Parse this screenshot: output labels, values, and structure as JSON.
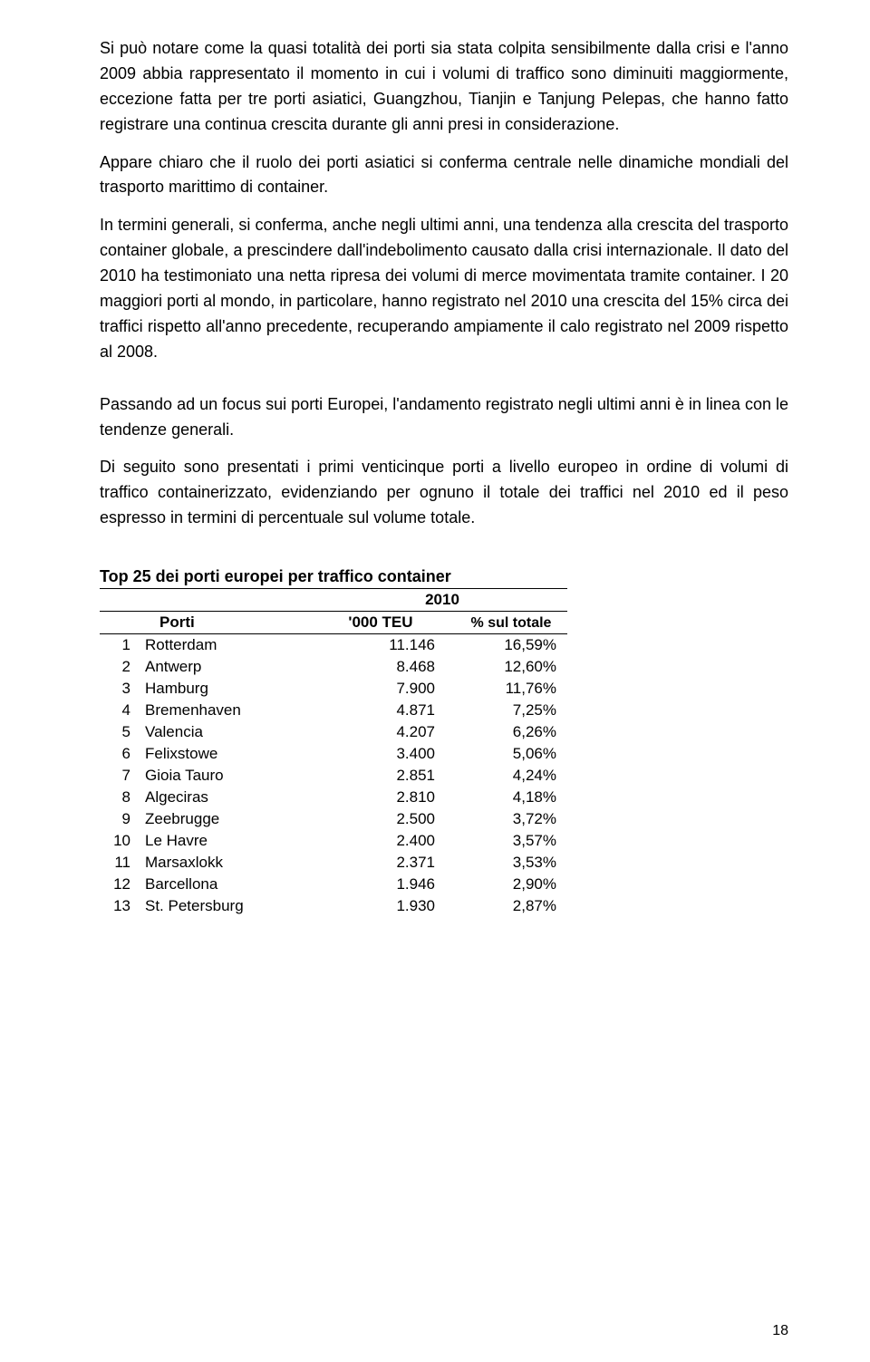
{
  "paragraphs": {
    "p1": "Si può notare come la quasi totalità dei porti sia stata colpita sensibilmente dalla crisi e l'anno 2009 abbia rappresentato il momento in cui i volumi di traffico sono diminuiti maggiormente, eccezione fatta per tre porti asiatici, Guangzhou, Tianjin e Tanjung Pelepas, che hanno fatto registrare una continua crescita durante gli anni presi in considerazione.",
    "p2": "Appare chiaro che il ruolo dei porti asiatici si conferma centrale nelle dinamiche mondiali del trasporto marittimo di container.",
    "p3": "In termini generali, si conferma, anche negli ultimi anni, una tendenza alla crescita del trasporto container globale, a prescindere dall'indebolimento causato dalla crisi internazionale. Il dato del 2010 ha testimoniato una netta ripresa dei volumi di merce movimentata tramite container. I 20 maggiori porti al mondo, in particolare, hanno registrato nel 2010 una crescita del 15% circa dei traffici rispetto all'anno precedente, recuperando ampiamente il calo registrato nel 2009 rispetto al 2008.",
    "p4": "Passando ad un focus sui porti Europei, l'andamento registrato negli ultimi anni è in linea con le tendenze generali.",
    "p5": "Di seguito sono presentati i primi venticinque porti a livello europeo in ordine di volumi di traffico containerizzato, evidenziando per ognuno il totale dei traffici nel 2010 ed il peso espresso in termini di percentuale sul volume totale."
  },
  "table": {
    "title": "Top 25 dei porti europei per traffico container",
    "year": "2010",
    "headers": {
      "port": "Porti",
      "teu": "'000 TEU",
      "pct": "% sul totale"
    },
    "rows": [
      {
        "rank": "1",
        "port": "Rotterdam",
        "teu": "11.146",
        "pct": "16,59%"
      },
      {
        "rank": "2",
        "port": "Antwerp",
        "teu": "8.468",
        "pct": "12,60%"
      },
      {
        "rank": "3",
        "port": "Hamburg",
        "teu": "7.900",
        "pct": "11,76%"
      },
      {
        "rank": "4",
        "port": "Bremenhaven",
        "teu": "4.871",
        "pct": "7,25%"
      },
      {
        "rank": "5",
        "port": "Valencia",
        "teu": "4.207",
        "pct": "6,26%"
      },
      {
        "rank": "6",
        "port": "Felixstowe",
        "teu": "3.400",
        "pct": "5,06%"
      },
      {
        "rank": "7",
        "port": "Gioia Tauro",
        "teu": "2.851",
        "pct": "4,24%"
      },
      {
        "rank": "8",
        "port": "Algeciras",
        "teu": "2.810",
        "pct": "4,18%"
      },
      {
        "rank": "9",
        "port": "Zeebrugge",
        "teu": "2.500",
        "pct": "3,72%"
      },
      {
        "rank": "10",
        "port": "Le Havre",
        "teu": "2.400",
        "pct": "3,57%"
      },
      {
        "rank": "11",
        "port": "Marsaxlokk",
        "teu": "2.371",
        "pct": "3,53%"
      },
      {
        "rank": "12",
        "port": "Barcellona",
        "teu": "1.946",
        "pct": "2,90%"
      },
      {
        "rank": "13",
        "port": "St. Petersburg",
        "teu": "1.930",
        "pct": "2,87%"
      }
    ]
  },
  "pageNumber": "18"
}
